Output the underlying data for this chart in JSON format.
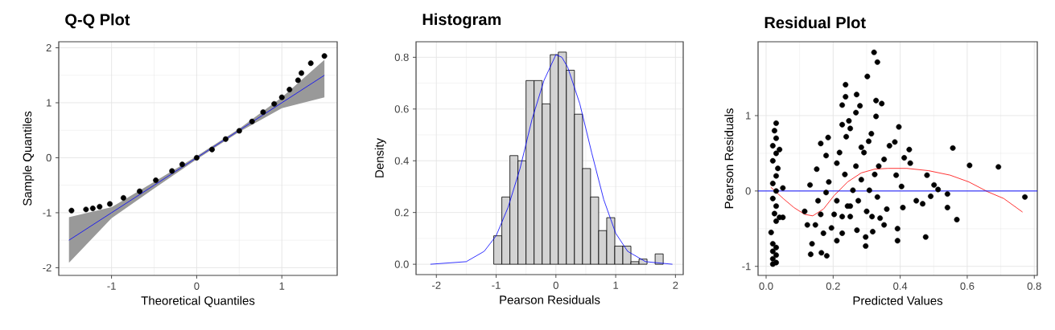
{
  "chart_data": [
    {
      "type": "scatter",
      "title": "Q-Q Plot",
      "xlabel": "Theoretical Quantiles",
      "ylabel": "Sample Quantiles",
      "xlim": [
        -1.62,
        1.65
      ],
      "ylim": [
        -2.14,
        2.11
      ],
      "xticks": [
        -1,
        0,
        1
      ],
      "yticks": [
        -2,
        -1,
        0,
        1,
        2
      ],
      "grid": true,
      "series": [
        {
          "type": "line",
          "color": "#0000ff",
          "x": [
            -1.5,
            -1,
            -0.5,
            0,
            0.5,
            1,
            1.5
          ],
          "values": [
            -1.5,
            -1,
            -0.5,
            0,
            0.5,
            1,
            1.5
          ],
          "lower": [
            -1.91,
            -1.1,
            -0.56,
            -0.03,
            0.47,
            0.9,
            1.1
          ],
          "upper": [
            -1.08,
            -0.9,
            -0.44,
            0.03,
            0.53,
            1.1,
            1.78
          ]
        },
        {
          "marker": "circle",
          "color": "#000000",
          "x": [
            -1.47,
            -1.3,
            -1.22,
            -1.14,
            -1.02,
            -0.86,
            -0.67,
            -0.48,
            -0.29,
            -0.17,
            0,
            0.18,
            0.34,
            0.5,
            0.65,
            0.78,
            0.91,
            1.0,
            1.09,
            1.19,
            1.23,
            1.34,
            1.5
          ],
          "values": [
            -0.96,
            -0.94,
            -0.92,
            -0.89,
            -0.84,
            -0.73,
            -0.61,
            -0.41,
            -0.24,
            -0.12,
            0,
            0.15,
            0.34,
            0.49,
            0.66,
            0.83,
            0.98,
            1.1,
            1.24,
            1.41,
            1.54,
            1.72,
            1.85
          ]
        }
      ]
    },
    {
      "type": "histogram",
      "title": "Histogram",
      "xlabel": "Pearson Residuals",
      "ylabel": "Density",
      "xlim": [
        -2.34,
        2.13
      ],
      "ylim": [
        -0.04,
        0.86
      ],
      "xticks": [
        -2,
        -1,
        0,
        1,
        2
      ],
      "yticks": [
        {
          "value": 0,
          "label": "0.0"
        },
        {
          "value": 0.2,
          "label": "0.2"
        },
        {
          "value": 0.4,
          "label": "0.4"
        },
        {
          "value": 0.6,
          "label": "0.6"
        },
        {
          "value": 0.8,
          "label": "0.8"
        }
      ],
      "grid": true,
      "series": [
        {
          "color": "#d3d3d3",
          "bins": [
            -2.12,
            -1.985,
            -1.85,
            -1.715,
            -1.58,
            -1.445,
            -1.31,
            -1.175,
            -1.04,
            -0.905,
            -0.77,
            -0.635,
            -0.5,
            -0.365,
            -0.23,
            -0.095,
            0.04,
            0.175,
            0.31,
            0.445,
            0.58,
            0.715,
            0.85,
            0.985,
            1.12,
            1.255,
            1.39,
            1.525,
            1.66,
            1.795,
            1.93
          ],
          "values": [
            0,
            0,
            0,
            0,
            0,
            0,
            0,
            0,
            0.11,
            0.26,
            0.42,
            0.4,
            0.71,
            0.71,
            0.62,
            0.81,
            0.82,
            0.75,
            0.58,
            0.37,
            0.26,
            0.13,
            0.18,
            0.07,
            0.07,
            0.01,
            0.02,
            0,
            0.04,
            0
          ]
        },
        {
          "type": "line",
          "color": "#0000ff",
          "x": [
            -2.1,
            -1.5,
            -1.2,
            -1.0,
            -0.8,
            -0.6,
            -0.4,
            -0.2,
            0,
            0.1,
            0.2,
            0.4,
            0.6,
            0.8,
            1.0,
            1.2,
            1.5,
            1.95
          ],
          "values": [
            0,
            0.01,
            0.05,
            0.11,
            0.22,
            0.37,
            0.56,
            0.71,
            0.81,
            0.8,
            0.76,
            0.62,
            0.43,
            0.25,
            0.12,
            0.05,
            0.01,
            0
          ]
        }
      ]
    },
    {
      "type": "scatter",
      "title": "Residual Plot",
      "xlabel": "Predicted Values",
      "ylabel": "Pearson Residuals",
      "xlim": [
        -0.024,
        0.809
      ],
      "ylim": [
        -1.12,
        1.98
      ],
      "xticks": [
        {
          "value": 0,
          "label": "0.0"
        },
        {
          "value": 0.2,
          "label": "0.2"
        },
        {
          "value": 0.4,
          "label": "0.4"
        },
        {
          "value": 0.6,
          "label": "0.6"
        },
        {
          "value": 0.8,
          "label": "0.8"
        }
      ],
      "yticks": [
        -1,
        0,
        1
      ],
      "grid": true,
      "series": [
        {
          "marker": "circle",
          "color": "#000000",
          "x": [
            0.02,
            0.03,
            0.02,
            0.03,
            0.02,
            0.03,
            0.02,
            0.015,
            0.03,
            0.025,
            0.04,
            0.03,
            0.02,
            0.03,
            0.05,
            0.02,
            0.03,
            0.035,
            0.02,
            0.03,
            0.04,
            0.02,
            0.03,
            0.025,
            0.03,
            0.05,
            0.322,
            0.332,
            0.302,
            0.237,
            0.237,
            0.27,
            0.227,
            0.28,
            0.328,
            0.345,
            0.328,
            0.268,
            0.247,
            0.227,
            0.396,
            0.314,
            0.163,
            0.185,
            0.306,
            0.384,
            0.368,
            0.427,
            0.557,
            0.607,
            0.693,
            0.772,
            0.569,
            0.476,
            0.541,
            0.541,
            0.491,
            0.513,
            0.501,
            0.48,
            0.467,
            0.448,
            0.408,
            0.404,
            0.388,
            0.412,
            0.43,
            0.352,
            0.392,
            0.392,
            0.297,
            0.297,
            0.318,
            0.332,
            0.34,
            0.352,
            0.36,
            0.316,
            0.133,
            0.165,
            0.181,
            0.137,
            0.123,
            0.115,
            0.131,
            0.155,
            0.151,
            0.179,
            0.211,
            0.187,
            0.211,
            0.195,
            0.211,
            0.227,
            0.251,
            0.271,
            0.243,
            0.259,
            0.284,
            0.292,
            0.239,
            0.251,
            0.219,
            0.163,
            0.171,
            0.147,
            0.275,
            0.3,
            0.308,
            0.324,
            0.336,
            0.203,
            0.235,
            0.268,
            0.284,
            0.179,
            0.227,
            0.251
          ],
          "values": [
            -0.97,
            -0.95,
            -0.9,
            -0.85,
            -0.8,
            -0.75,
            -0.7,
            -0.55,
            -0.4,
            -0.3,
            -0.35,
            -0.2,
            -0.1,
            0,
            0.04,
            0.1,
            0.2,
            0.3,
            0.4,
            0.5,
            0.55,
            0.6,
            0.7,
            0.8,
            0.9,
            -0.35,
            1.84,
            1.71,
            1.52,
            1.41,
            1.25,
            1.28,
            1.14,
            1.13,
            1.2,
            1.16,
            0.99,
            1.04,
            0.93,
            0.88,
            0.85,
            0.76,
            0.63,
            0.71,
            0.66,
            0.65,
            0.6,
            0.55,
            0.57,
            0.34,
            0.32,
            -0.08,
            -0.38,
            -0.61,
            -0.22,
            -0.04,
            -0.07,
            0.02,
            0.08,
            0.21,
            -0.17,
            -0.13,
            -0.22,
            0.06,
            0.21,
            0.44,
            0.37,
            0.42,
            -0.66,
            -0.5,
            -0.61,
            -0.73,
            -0.54,
            -0.08,
            -0.36,
            -0.45,
            -0.24,
            -0.34,
            -0.84,
            -0.82,
            -0.86,
            -0.7,
            -0.45,
            -0.27,
            0.08,
            -0.13,
            0.29,
            0.47,
            0.37,
            0.12,
            -0.13,
            -0.49,
            -0.66,
            -0.56,
            -0.34,
            -0.52,
            -0.2,
            0.01,
            0.15,
            0.51,
            0.72,
            0.83,
            0.51,
            -0.31,
            -0.56,
            -0.45,
            -0.13,
            -0.27,
            0.01,
            0.22,
            0.33,
            -0.31,
            0.22,
            0.33,
            0.58,
            -0.02,
            -0.34,
            -0.2
          ]
        },
        {
          "type": "line",
          "color": "#ff0000",
          "x": [
            0.014,
            0.051,
            0.083,
            0.115,
            0.139,
            0.171,
            0.203,
            0.243,
            0.284,
            0.324,
            0.364,
            0.42,
            0.484,
            0.549,
            0.605,
            0.661,
            0.709,
            0.765
          ],
          "values": [
            0.05,
            -0.1,
            -0.22,
            -0.31,
            -0.33,
            -0.24,
            -0.06,
            0.12,
            0.24,
            0.29,
            0.3,
            0.3,
            0.27,
            0.21,
            0.12,
            -0.01,
            -0.1,
            -0.28
          ]
        }
      ],
      "ref_lines": [
        {
          "axis": "y",
          "value": 0,
          "color": "#0000ff"
        }
      ]
    }
  ]
}
